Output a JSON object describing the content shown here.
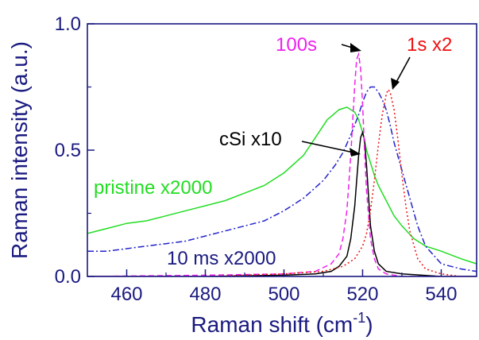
{
  "chart_data": {
    "type": "line",
    "xlabel": "Raman shift (cm",
    "xlabel_sup": "-1",
    "xlabel_close": ")",
    "ylabel": "Raman intensity (a.u.)",
    "xlim": [
      450,
      549
    ],
    "ylim": [
      0.0,
      1.0
    ],
    "xticks": [
      460,
      480,
      500,
      520,
      540
    ],
    "xtick_labels": [
      "460",
      "480",
      "500",
      "520",
      "540"
    ],
    "yticks": [
      0.0,
      0.5,
      1.0
    ],
    "ytick_labels": [
      "0.0",
      "0.5",
      "1.0"
    ],
    "series": [
      {
        "name": "pristine x2000",
        "color": "#22dd22",
        "dash": "solid",
        "x": [
          450,
          455,
          460,
          465,
          470,
          475,
          480,
          485,
          490,
          495,
          500,
          505,
          508,
          511,
          514,
          516,
          518,
          519,
          520,
          521,
          522,
          523,
          524,
          526,
          528,
          530,
          533,
          536,
          540,
          545,
          549
        ],
        "y": [
          0.17,
          0.19,
          0.21,
          0.22,
          0.24,
          0.26,
          0.28,
          0.3,
          0.33,
          0.36,
          0.41,
          0.48,
          0.55,
          0.62,
          0.66,
          0.67,
          0.65,
          0.62,
          0.57,
          0.5,
          0.45,
          0.4,
          0.36,
          0.3,
          0.24,
          0.2,
          0.15,
          0.12,
          0.1,
          0.07,
          0.05
        ]
      },
      {
        "name": "10 ms x2000",
        "color": "#2222cc",
        "dash": "dashdot",
        "x": [
          450,
          455,
          460,
          465,
          470,
          475,
          480,
          485,
          490,
          495,
          500,
          505,
          510,
          513,
          515,
          517,
          519,
          520,
          521,
          522,
          523,
          524,
          525,
          526,
          527,
          528,
          530,
          532,
          534,
          536,
          540,
          545,
          549
        ],
        "y": [
          0.1,
          0.1,
          0.11,
          0.12,
          0.13,
          0.14,
          0.16,
          0.18,
          0.2,
          0.22,
          0.26,
          0.31,
          0.38,
          0.44,
          0.49,
          0.56,
          0.64,
          0.69,
          0.73,
          0.75,
          0.75,
          0.73,
          0.7,
          0.66,
          0.6,
          0.53,
          0.42,
          0.31,
          0.2,
          0.12,
          0.05,
          0.03,
          0.02
        ]
      },
      {
        "name": "cSi x10",
        "color": "#000000",
        "dash": "solid",
        "x": [
          450,
          480,
          500,
          508,
          512,
          514,
          516,
          517,
          518,
          518.5,
          519,
          519.5,
          520,
          520.5,
          521,
          521.5,
          522,
          523,
          524,
          526,
          530,
          540,
          549
        ],
        "y": [
          0.0,
          0.0,
          0.005,
          0.01,
          0.02,
          0.04,
          0.08,
          0.15,
          0.28,
          0.38,
          0.48,
          0.55,
          0.57,
          0.54,
          0.44,
          0.32,
          0.2,
          0.1,
          0.05,
          0.02,
          0.01,
          0.0,
          0.0
        ]
      },
      {
        "name": "100s",
        "color": "#ee22ee",
        "dash": "dashed",
        "x": [
          450,
          480,
          500,
          508,
          512,
          514,
          515,
          516,
          517,
          517.5,
          518,
          518.5,
          519,
          519.5,
          520,
          520.5,
          521,
          522,
          523,
          524,
          526,
          530,
          540,
          549
        ],
        "y": [
          0.0,
          0.005,
          0.01,
          0.02,
          0.05,
          0.09,
          0.15,
          0.26,
          0.48,
          0.62,
          0.76,
          0.86,
          0.88,
          0.82,
          0.68,
          0.5,
          0.34,
          0.15,
          0.07,
          0.03,
          0.01,
          0.0,
          0.0,
          0.0
        ]
      },
      {
        "name": "1s x2",
        "color": "#ee1111",
        "dash": "dotted",
        "x": [
          450,
          480,
          500,
          510,
          515,
          518,
          520,
          521,
          522,
          523,
          524,
          525,
          526,
          526.5,
          527,
          528,
          529,
          530,
          531,
          532,
          534,
          536,
          540,
          545,
          549
        ],
        "y": [
          0.0,
          0.0,
          0.01,
          0.02,
          0.04,
          0.07,
          0.12,
          0.17,
          0.26,
          0.38,
          0.52,
          0.64,
          0.72,
          0.74,
          0.73,
          0.66,
          0.54,
          0.4,
          0.28,
          0.18,
          0.07,
          0.03,
          0.01,
          0.0,
          0.0
        ]
      }
    ],
    "annotations": [
      {
        "text": "pristine x2000",
        "color": "#22dd22"
      },
      {
        "text": "10 ms x2000",
        "color": "#1a1a80"
      },
      {
        "text": "cSi x10",
        "color": "#000000"
      },
      {
        "text": "100s",
        "color": "#ee22ee"
      },
      {
        "text": "1s x2",
        "color": "#ee1111"
      }
    ],
    "grid": false,
    "frame_color": "#1a1a80"
  }
}
